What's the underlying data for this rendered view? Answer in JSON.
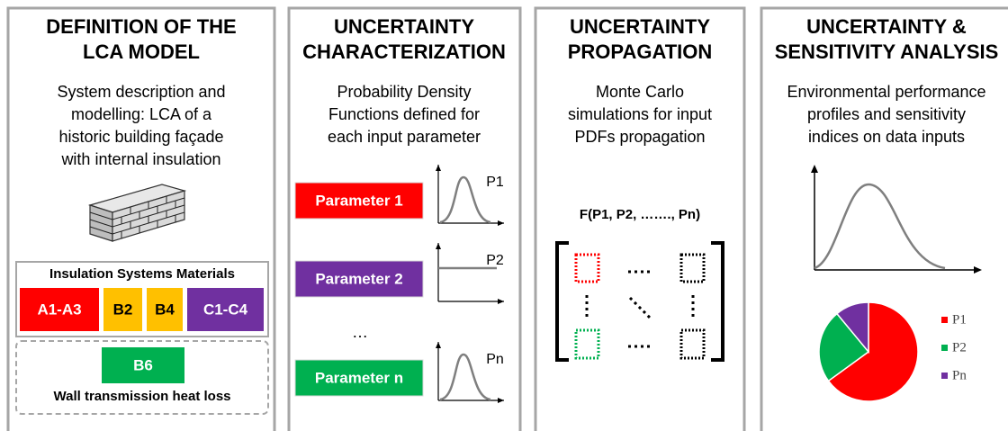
{
  "panels": [
    {
      "title": [
        "DEFINITION OF THE",
        "LCA MODEL"
      ],
      "description": [
        "System description and",
        "modelling: LCA of a",
        "historic building façade",
        "with internal insulation"
      ],
      "materials_title": "Insulation Systems Materials",
      "materials": [
        {
          "label": "A1-A3",
          "color": "#ff0000"
        },
        {
          "label": "B2",
          "color": "#ffc000"
        },
        {
          "label": "B4",
          "color": "#ffc000"
        },
        {
          "label": "C1-C4",
          "color": "#7030a0"
        }
      ],
      "use_stage": {
        "label": "B6",
        "color": "#00b050"
      },
      "use_stage_caption": "Wall transmission heat loss"
    },
    {
      "title": [
        "UNCERTAINTY",
        "CHARACTERIZATION"
      ],
      "description": [
        "Probability Density",
        "Functions defined for",
        "each input parameter"
      ],
      "parameters": [
        {
          "label": "Parameter 1",
          "color": "#ff0000",
          "curve_label": "P1"
        },
        {
          "label": "Parameter 2",
          "color": "#7030a0",
          "curve_label": "P2"
        },
        {
          "label": "Parameter n",
          "color": "#00b050",
          "curve_label": "Pn"
        }
      ],
      "ellipsis": "…"
    },
    {
      "title": [
        "UNCERTAINTY",
        "PROPAGATION"
      ],
      "description": [
        "Monte Carlo",
        "simulations for input",
        "PDFs propagation"
      ],
      "formula": "F(P1, P2, ……., Pn)"
    },
    {
      "title": [
        "UNCERTAINTY &",
        "SENSITIVITY ANALYSIS"
      ],
      "description": [
        "Environmental performance",
        "profiles and sensitivity",
        "indices on data inputs"
      ],
      "chart_data": {
        "type": "pie",
        "categories": [
          "P1",
          "P2",
          "Pn"
        ],
        "values": [
          65,
          24,
          11
        ],
        "colors": [
          "#ff0000",
          "#00b050",
          "#7030a0"
        ]
      }
    }
  ]
}
